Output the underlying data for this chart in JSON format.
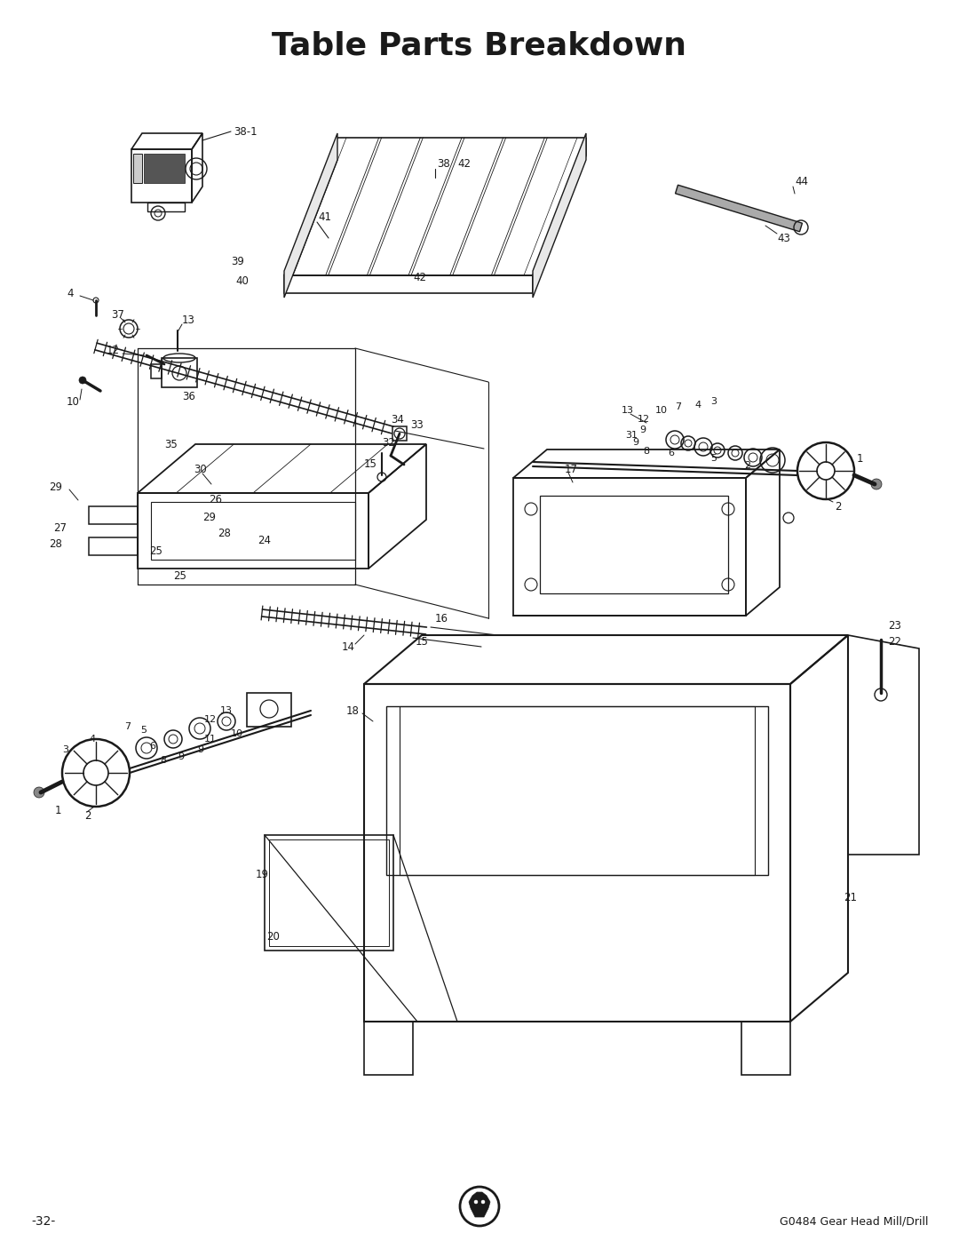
{
  "title": "Table Parts Breakdown",
  "title_fontsize": 26,
  "title_fontweight": "bold",
  "page_number": "-32-",
  "model": "G0484 Gear Head Mill/Drill",
  "bg": "#ffffff",
  "lc": "#1a1a1a",
  "tc": "#1a1a1a",
  "fig_w": 10.8,
  "fig_h": 13.97
}
